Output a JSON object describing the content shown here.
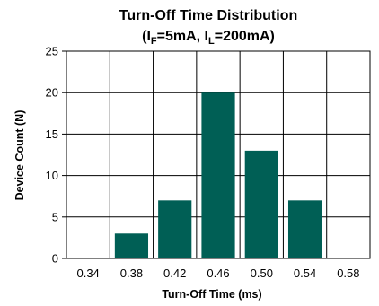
{
  "chart_data": {
    "type": "bar",
    "title_line1": "Turn-Off Time Distribution",
    "title_line2": {
      "open": "(I",
      "sub1": "F",
      "mid": "=5mA, I",
      "sub2": "L",
      "close": "=200mA)"
    },
    "xlabel": "Turn-Off Time (ms)",
    "ylabel": "Device Count (N)",
    "categories": [
      "0.34",
      "0.38",
      "0.42",
      "0.46",
      "0.50",
      "0.54",
      "0.58"
    ],
    "values": [
      0,
      3,
      7,
      20,
      13,
      7,
      0
    ],
    "ylim": [
      0,
      25
    ],
    "yticks": [
      "0",
      "5",
      "10",
      "15",
      "20",
      "25"
    ],
    "grid": true,
    "bar_color": "#005f55"
  }
}
